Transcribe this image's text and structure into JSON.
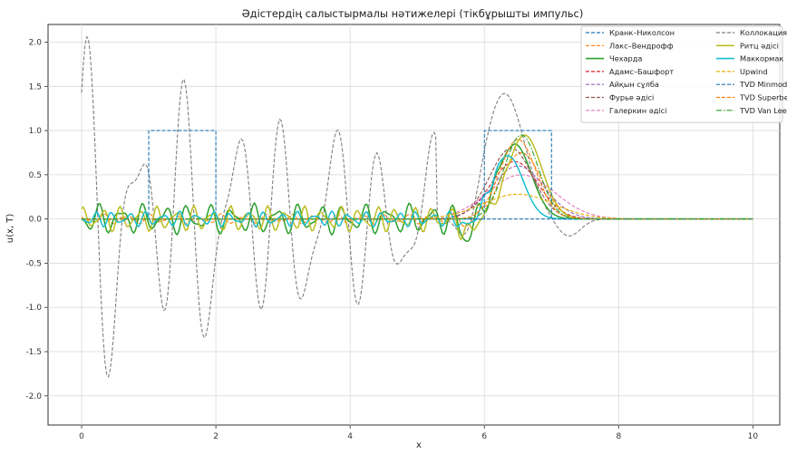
{
  "chart_data": {
    "type": "line",
    "title": "Әдістердің салыстырмалы нәтижелері (тікбұрышты импульс)",
    "xlabel": "x",
    "ylabel": "u(x, T)",
    "xlim": [
      -0.5,
      10.4
    ],
    "ylim": [
      -2.33,
      2.2
    ],
    "xticks": [
      0,
      2,
      4,
      6,
      8,
      10
    ],
    "yticks": [
      -2.0,
      -1.5,
      -1.0,
      -0.5,
      0.0,
      0.5,
      1.0,
      1.5,
      2.0
    ],
    "grid": true,
    "legend_position": "top-right",
    "legend_columns": 2,
    "initial_pulse": {
      "x": [
        0,
        1,
        1,
        2,
        2,
        10
      ],
      "y": [
        0,
        0,
        1,
        1,
        0,
        0
      ]
    },
    "exact_pulse": {
      "x": [
        0,
        6,
        6,
        7,
        7,
        10
      ],
      "y": [
        0,
        0,
        1,
        1,
        0,
        0
      ]
    },
    "series": [
      {
        "name": "Кранк–Николсон",
        "color": "#1f77b4",
        "dash": true,
        "kind": "rect_initial"
      },
      {
        "name": "Лакс–Вендрофф",
        "color": "#ff7f0e",
        "dash": true,
        "kind": "osc",
        "peak": 0.75,
        "center": 6.55,
        "width": 0.42,
        "osc_amp": 0.04,
        "seed": 2
      },
      {
        "name": "Чехарда",
        "color": "#2ca02c",
        "dash": false,
        "kind": "osc",
        "peak": 0.85,
        "center": 6.45,
        "width": 0.35,
        "osc_amp": 0.12,
        "seed": 3
      },
      {
        "name": "Адамс–Башфорт",
        "color": "#d62728",
        "dash": true,
        "kind": "smooth",
        "peak": 0.65,
        "center": 6.45,
        "width": 0.5
      },
      {
        "name": "Айқын сұлба",
        "color": "#9467bd",
        "dash": true,
        "kind": "smooth",
        "peak": 0.6,
        "center": 6.5,
        "width": 0.55
      },
      {
        "name": "Фурье әдісі",
        "color": "#8c564b",
        "dash": true,
        "kind": "smooth",
        "peak": 0.8,
        "center": 6.4,
        "width": 0.45
      },
      {
        "name": "Галеркин әдісі",
        "color": "#e377c2",
        "dash": true,
        "kind": "smooth",
        "peak": 0.5,
        "center": 6.55,
        "width": 0.7
      },
      {
        "name": "Коллокация әдісі",
        "color": "#7f7f7f",
        "dash": true,
        "kind": "gibbs"
      },
      {
        "name": "Ритц әдісі",
        "color": "#bcbd22",
        "dash": false,
        "kind": "osc",
        "peak": 0.95,
        "center": 6.6,
        "width": 0.36,
        "osc_amp": 0.1,
        "seed": 7
      },
      {
        "name": "Маккормак",
        "color": "#17becf",
        "dash": false,
        "kind": "osc",
        "peak": 0.72,
        "center": 6.35,
        "width": 0.32,
        "osc_amp": 0.06,
        "seed": 9
      },
      {
        "name": "Upwind",
        "color": "#e8b000",
        "dash": true,
        "kind": "smooth",
        "peak": 0.28,
        "center": 6.5,
        "width": 0.75
      },
      {
        "name": "TVD Minmod",
        "color": "#1f77b4",
        "dash": true,
        "kind": "rect_exact"
      },
      {
        "name": "TVD Superbee",
        "color": "#ff7f0e",
        "dash": true,
        "kind": "smooth",
        "peak": 0.9,
        "center": 6.5,
        "width": 0.38
      },
      {
        "name": "TVD Van Leer",
        "color": "#2ca02c",
        "dash": "dashdot",
        "kind": "smooth",
        "peak": 0.95,
        "center": 6.55,
        "width": 0.36
      }
    ]
  }
}
